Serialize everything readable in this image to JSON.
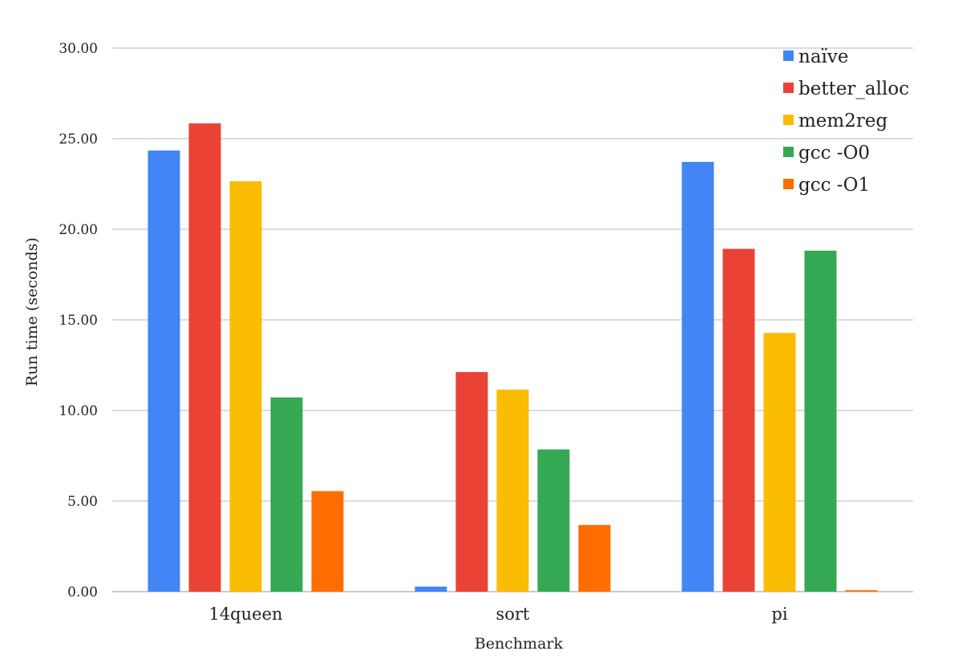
{
  "chart_data": {
    "type": "bar",
    "title": "",
    "xlabel": "Benchmark",
    "ylabel": "Run time (seconds)",
    "ylim": [
      0,
      30
    ],
    "yticks": [
      "0.00",
      "5.00",
      "10.00",
      "15.00",
      "20.00",
      "25.00",
      "30.00"
    ],
    "ytick_values": [
      0,
      5,
      10,
      15,
      20,
      25,
      30
    ],
    "grid": true,
    "legend_position": "top-right",
    "categories": [
      "14queen",
      "sort",
      "pi"
    ],
    "series": [
      {
        "name": "naïve",
        "color": "#4285f4",
        "values": [
          24.35,
          0.28,
          23.72
        ]
      },
      {
        "name": "better_alloc",
        "color": "#ea4335",
        "values": [
          25.85,
          12.12,
          18.92
        ]
      },
      {
        "name": "mem2reg",
        "color": "#fbbc04",
        "values": [
          22.65,
          11.15,
          14.28
        ]
      },
      {
        "name": "gcc -O0",
        "color": "#34a853",
        "values": [
          10.72,
          7.85,
          18.82
        ]
      },
      {
        "name": "gcc -O1",
        "color": "#ff6d01",
        "values": [
          5.55,
          3.68,
          0.08
        ]
      }
    ]
  }
}
